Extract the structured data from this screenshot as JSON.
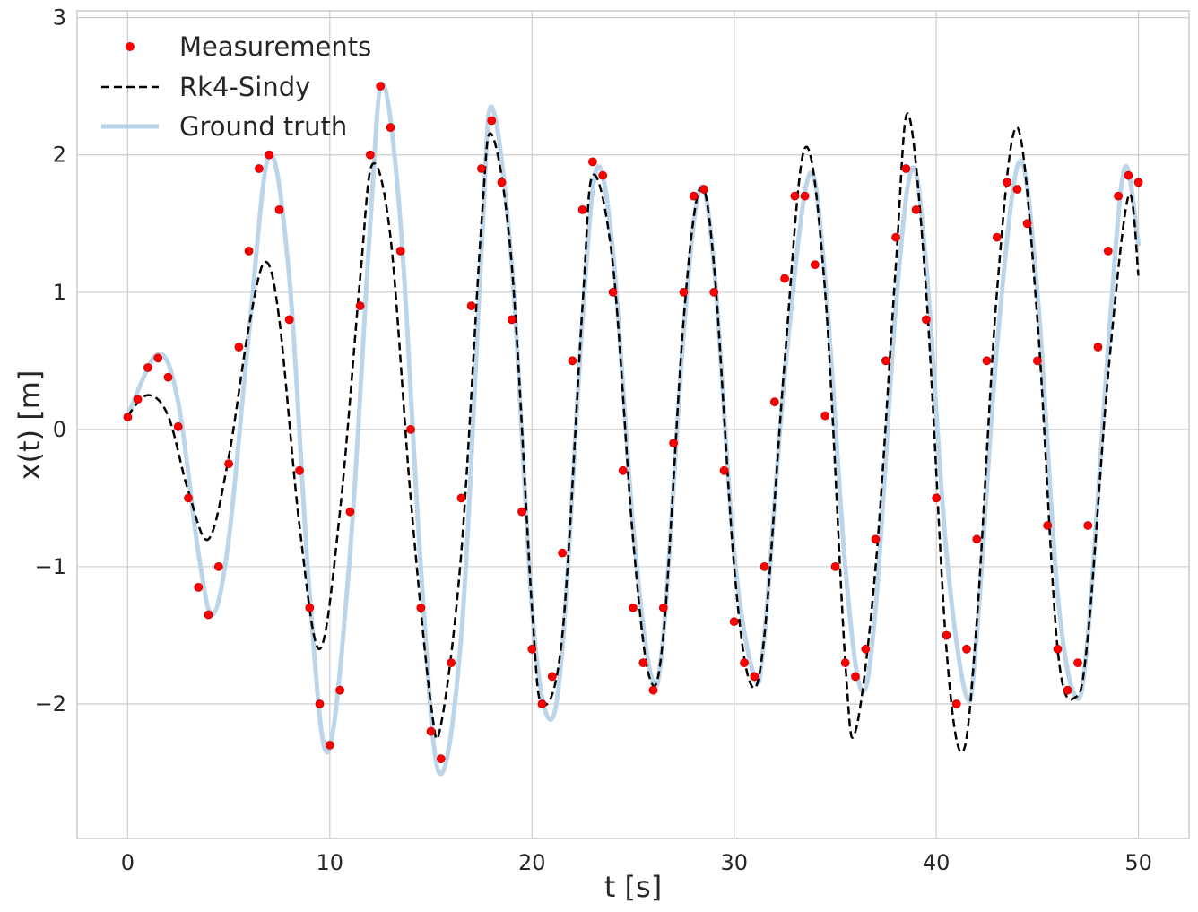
{
  "chart_data": {
    "type": "line",
    "xlabel": "t [s]",
    "ylabel": "x(t) [m]",
    "xlim": [
      -2.5,
      52.5
    ],
    "ylim": [
      -2.98,
      3.05
    ],
    "xticks": [
      0,
      10,
      20,
      30,
      40,
      50
    ],
    "yticks": [
      -2,
      -1,
      0,
      1,
      2,
      3
    ],
    "xtick_labels": [
      "0",
      "10",
      "20",
      "30",
      "40",
      "50"
    ],
    "ytick_labels": [
      "−2",
      "−1",
      "0",
      "1",
      "2",
      "3"
    ],
    "grid": true,
    "legend_position": "top-left",
    "legend": [
      "Measurements",
      "Rk4-Sindy",
      "Ground truth"
    ],
    "series": [
      {
        "name": "Measurements",
        "style": "markers",
        "color": "#ff0000",
        "x": [
          0.0,
          0.5,
          1.0,
          1.5,
          2.0,
          2.5,
          3.0,
          3.5,
          4.0,
          4.5,
          5.0,
          5.5,
          6.0,
          6.5,
          7.0,
          7.5,
          8.0,
          8.5,
          9.0,
          9.5,
          10.0,
          10.5,
          11.0,
          11.5,
          12.0,
          12.5,
          13.0,
          13.5,
          14.0,
          14.5,
          15.0,
          15.5,
          16.0,
          16.5,
          17.0,
          17.5,
          18.0,
          18.5,
          19.0,
          19.5,
          20.0,
          20.5,
          21.0,
          21.5,
          22.0,
          22.5,
          23.0,
          23.5,
          24.0,
          24.5,
          25.0,
          25.5,
          26.0,
          26.5,
          27.0,
          27.5,
          28.0,
          28.5,
          29.0,
          29.5,
          30.0,
          30.5,
          31.0,
          31.5,
          32.0,
          32.5,
          33.0,
          33.5,
          34.0,
          34.5,
          35.0,
          35.5,
          36.0,
          36.5,
          37.0,
          37.5,
          38.0,
          38.5,
          39.0,
          39.5,
          40.0,
          40.5,
          41.0,
          41.5,
          42.0,
          42.5,
          43.0,
          43.5,
          44.0,
          44.5,
          45.0,
          45.5,
          46.0,
          46.5,
          47.0,
          47.5,
          48.0,
          48.5,
          49.0,
          49.5,
          50.0
        ],
        "y": [
          0.09,
          0.22,
          0.45,
          0.52,
          0.38,
          0.02,
          -0.5,
          -1.15,
          -1.35,
          -1.0,
          -0.25,
          0.6,
          1.3,
          1.9,
          2.0,
          1.6,
          0.8,
          -0.3,
          -1.3,
          -2.0,
          -2.3,
          -1.9,
          -0.6,
          0.9,
          2.0,
          2.5,
          2.2,
          1.3,
          0.0,
          -1.3,
          -2.2,
          -2.4,
          -1.7,
          -0.5,
          0.9,
          1.9,
          2.25,
          1.8,
          0.8,
          -0.6,
          -1.6,
          -2.0,
          -1.8,
          -0.9,
          0.5,
          1.6,
          1.95,
          1.85,
          1.0,
          -0.3,
          -1.3,
          -1.7,
          -1.9,
          -1.3,
          -0.1,
          1.0,
          1.7,
          1.75,
          1.0,
          -0.3,
          -1.4,
          -1.7,
          -1.8,
          -1.0,
          0.2,
          1.1,
          1.7,
          1.7,
          1.2,
          0.1,
          -1.0,
          -1.7,
          -1.8,
          -1.6,
          -0.8,
          0.5,
          1.4,
          1.9,
          1.6,
          0.8,
          -0.5,
          -1.5,
          -2.0,
          -1.6,
          -0.8,
          0.5,
          1.4,
          1.8,
          1.75,
          1.5,
          0.5,
          -0.7,
          -1.6,
          -1.9,
          -1.7,
          -0.7,
          0.6,
          1.3,
          1.7,
          1.85,
          1.8
        ]
      },
      {
        "name": "Rk4-Sindy",
        "style": "dashed",
        "color": "#000000",
        "x": [
          0.0,
          1.0,
          2.0,
          3.0,
          4.0,
          5.0,
          6.0,
          6.8,
          7.5,
          8.5,
          9.5,
          10.5,
          11.5,
          12.1,
          13.0,
          14.0,
          15.0,
          15.5,
          16.5,
          17.5,
          18.0,
          19.0,
          20.0,
          20.5,
          21.5,
          22.5,
          23.0,
          24.0,
          25.0,
          25.8,
          26.5,
          27.5,
          28.3,
          29.0,
          30.0,
          30.8,
          31.5,
          32.5,
          33.5,
          34.5,
          35.5,
          36.0,
          37.0,
          38.0,
          38.6,
          39.5,
          40.5,
          41.3,
          42.0,
          43.0,
          44.0,
          45.0,
          46.0,
          46.9,
          47.5,
          48.5,
          49.5,
          50.0
        ],
        "y": [
          0.1,
          0.25,
          0.1,
          -0.45,
          -0.8,
          -0.2,
          0.75,
          1.22,
          0.8,
          -0.7,
          -1.6,
          -0.6,
          1.1,
          1.93,
          1.4,
          -0.5,
          -2.0,
          -2.15,
          -0.9,
          1.5,
          2.15,
          1.2,
          -1.3,
          -2.0,
          -1.5,
          0.9,
          1.85,
          1.2,
          -0.8,
          -1.8,
          -1.5,
          0.8,
          1.75,
          1.2,
          -1.0,
          -1.85,
          -1.5,
          0.5,
          2.05,
          1.0,
          -1.7,
          -2.2,
          -1.0,
          1.2,
          2.3,
          1.0,
          -1.6,
          -2.35,
          -1.4,
          1.0,
          2.2,
          0.8,
          -1.6,
          -1.95,
          -1.5,
          0.4,
          1.7,
          1.12
        ]
      },
      {
        "name": "Ground truth",
        "style": "line",
        "color": "#b8d3e8",
        "x": [
          0.0,
          1.5,
          2.5,
          3.5,
          4.2,
          5.0,
          6.0,
          7.0,
          8.0,
          9.0,
          9.9,
          11.0,
          12.0,
          12.6,
          13.5,
          14.5,
          15.4,
          16.5,
          17.5,
          18.0,
          19.0,
          20.0,
          20.8,
          21.5,
          22.5,
          23.2,
          24.0,
          25.0,
          25.9,
          26.5,
          27.5,
          28.3,
          29.0,
          30.0,
          31.0,
          31.5,
          32.5,
          33.7,
          34.5,
          35.5,
          36.3,
          37.0,
          38.0,
          38.8,
          39.5,
          40.5,
          41.5,
          42.0,
          43.0,
          44.1,
          45.0,
          46.0,
          46.9,
          47.5,
          48.5,
          49.3,
          50.0
        ],
        "y": [
          0.1,
          0.55,
          0.2,
          -0.9,
          -1.35,
          -0.8,
          0.7,
          2.0,
          1.1,
          -1.2,
          -2.35,
          -0.9,
          1.5,
          2.52,
          1.5,
          -1.0,
          -2.5,
          -1.5,
          1.3,
          2.35,
          1.2,
          -1.3,
          -2.1,
          -1.6,
          0.8,
          1.9,
          1.3,
          -0.7,
          -1.8,
          -1.5,
          0.7,
          1.75,
          1.2,
          -0.9,
          -1.8,
          -1.5,
          0.4,
          1.85,
          1.1,
          -1.0,
          -1.9,
          -1.3,
          0.9,
          1.9,
          1.2,
          -0.9,
          -1.95,
          -1.5,
          0.6,
          1.95,
          1.0,
          -1.2,
          -1.95,
          -1.5,
          0.6,
          1.9,
          1.35
        ]
      }
    ]
  }
}
